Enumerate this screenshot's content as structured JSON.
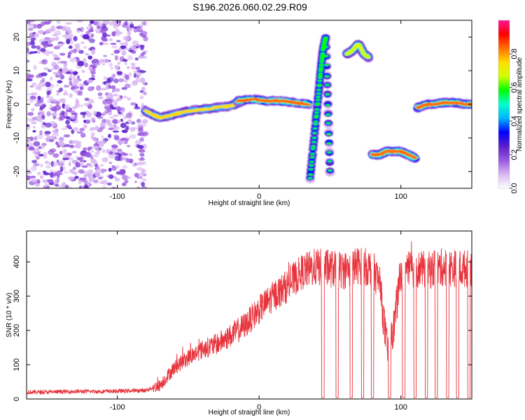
{
  "title": "S196.2026.060.02.29.R09",
  "chart_data": [
    {
      "type": "heatmap",
      "xlabel": "Height of straight line (km)",
      "ylabel": "Frequency (Hz)",
      "xlim": [
        -164,
        150
      ],
      "ylim": [
        -25,
        25
      ],
      "x_ticks": [
        -100,
        0,
        100
      ],
      "y_ticks": [
        -20,
        -10,
        0,
        10,
        20
      ],
      "colorbar": {
        "label": "Normalized spectral amplitude",
        "range": [
          0.0,
          1.0
        ],
        "ticks": [
          0.0,
          0.2,
          0.4,
          0.6,
          0.8
        ],
        "tick_labels": [
          "0.0",
          "0.2",
          "0.4",
          "0.6",
          "0.8"
        ],
        "colormap": [
          "#ffffff",
          "#d9b8f2",
          "#9a58e0",
          "#5a1ecc",
          "#0000ff",
          "#00b4ff",
          "#00ffd0",
          "#00ff00",
          "#d2ff00",
          "#ffdc00",
          "#ff7000",
          "#ff0000",
          "#ff1493"
        ]
      },
      "noise_region": {
        "x": [
          -164,
          -80
        ],
        "amplitude_max": 0.2
      },
      "tracks": [
        {
          "x": [
            -80,
            -70,
            -60,
            -50,
            -40,
            -30,
            -20,
            -12
          ],
          "freq": [
            -2,
            -4,
            -3,
            -2,
            -1.5,
            -1,
            -0.5,
            1
          ],
          "amplitude": 0.75
        },
        {
          "x": [
            -15,
            -5,
            5,
            15,
            25,
            35
          ],
          "freq": [
            1,
            1.5,
            1,
            1,
            0.5,
            0
          ],
          "amplitude": 0.85
        },
        {
          "x": [
            36,
            40,
            43,
            45,
            47,
            50
          ],
          "freq": [
            -22,
            -5,
            8,
            16,
            20,
            -20
          ],
          "amplitude": 0.6
        },
        {
          "x": [
            62,
            66,
            70,
            74,
            77
          ],
          "freq": [
            15,
            16,
            18,
            15,
            14
          ],
          "amplitude": 0.7
        },
        {
          "x": [
            80,
            85,
            90,
            95,
            100,
            105,
            110
          ],
          "freq": [
            -15,
            -15,
            -14,
            -14,
            -14,
            -15,
            -16
          ],
          "amplitude": 0.8
        },
        {
          "x": [
            112,
            118,
            124,
            130,
            138,
            146,
            150
          ],
          "freq": [
            -1,
            0,
            0,
            0.5,
            0.5,
            0,
            0
          ],
          "amplitude": 0.8
        }
      ]
    },
    {
      "type": "line",
      "xlabel": "Height of straight line (km)",
      "ylabel": "SNR (10 * v/v)",
      "xlim": [
        -164,
        150
      ],
      "ylim": [
        0,
        490
      ],
      "x_ticks": [
        -100,
        0,
        100
      ],
      "y_ticks": [
        0,
        100,
        200,
        300,
        400
      ],
      "color": "#e8333c",
      "series": [
        {
          "name": "SNR",
          "x": [
            -164,
            -150,
            -130,
            -110,
            -90,
            -80,
            -70,
            -60,
            -50,
            -40,
            -30,
            -20,
            -10,
            0,
            10,
            20,
            30,
            40,
            50,
            60,
            70,
            80,
            85,
            90,
            95,
            100,
            110,
            120,
            130,
            140,
            150
          ],
          "y": [
            20,
            20,
            22,
            22,
            24,
            25,
            40,
            90,
            120,
            145,
            160,
            185,
            215,
            260,
            300,
            330,
            370,
            385,
            380,
            375,
            390,
            380,
            340,
            150,
            210,
            370,
            380,
            375,
            385,
            380,
            380
          ]
        }
      ],
      "dropouts_x": [
        45,
        55,
        65,
        73,
        80,
        92,
        102,
        110,
        118,
        125,
        133,
        140,
        148
      ]
    }
  ]
}
